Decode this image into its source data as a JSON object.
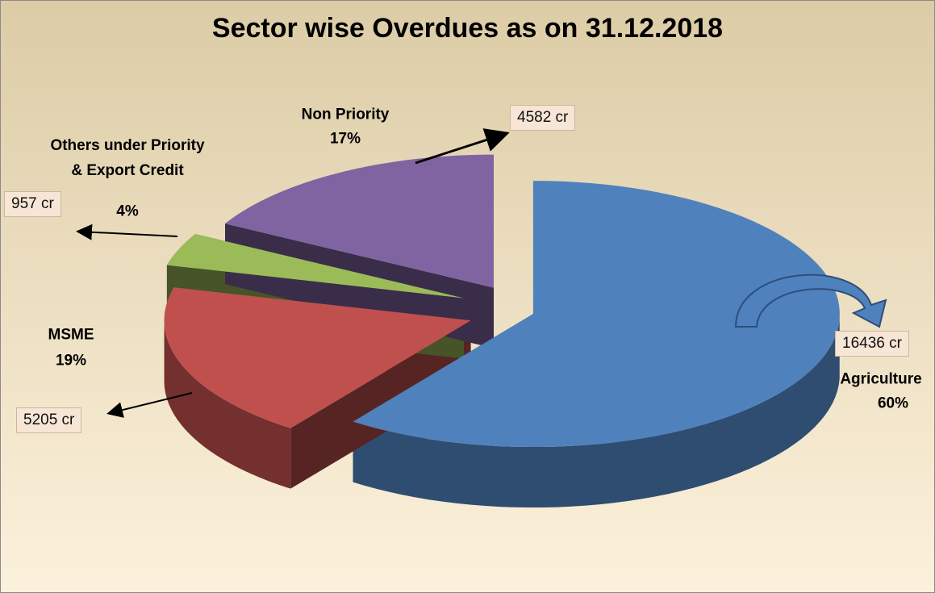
{
  "chart_data": {
    "type": "pie3d",
    "title": "Sector wise Overdues as on 31.12.2018",
    "categories": [
      "Agriculture",
      "MSME",
      "Others under Priority & Export Credit",
      "Non Priority"
    ],
    "values": [
      60,
      19,
      4,
      17
    ],
    "value_labels": [
      "60%",
      "19%",
      "4%",
      "17%"
    ],
    "amount_labels": [
      "16436 cr",
      "5205 cr",
      "957 cr",
      "4582 cr"
    ],
    "colors": [
      "#4f81bd",
      "#c0504d",
      "#9bbb59",
      "#8064a2"
    ]
  }
}
